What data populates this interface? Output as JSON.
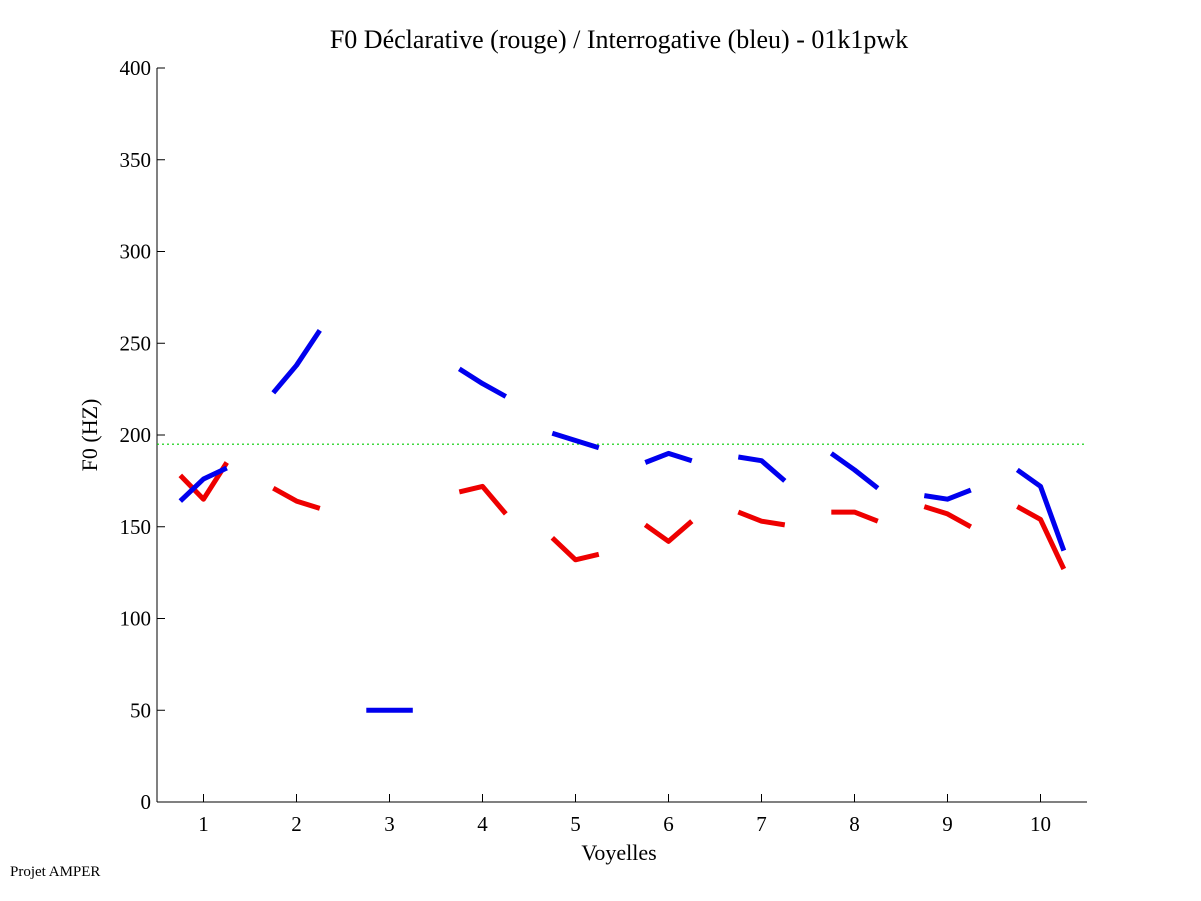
{
  "footer": "Projet AMPER",
  "chart_data": {
    "type": "line",
    "title": "F0 Déclarative (rouge) / Interrogative (bleu) - 01k1pwk",
    "xlabel": "Voyelles",
    "ylabel": "F0 (HZ)",
    "xlim": [
      0.5,
      10.5
    ],
    "ylim": [
      0,
      400
    ],
    "xticks": [
      1,
      2,
      3,
      4,
      5,
      6,
      7,
      8,
      9,
      10
    ],
    "yticks": [
      0,
      50,
      100,
      150,
      200,
      250,
      300,
      350,
      400
    ],
    "grid": false,
    "reference_line": {
      "y": 195,
      "color": "#00cc00",
      "style": "dotted"
    },
    "series": [
      {
        "name": "Déclarative",
        "color": "#ee0000",
        "segments": [
          {
            "x": [
              0.75,
              1.0,
              1.25
            ],
            "y": [
              178,
              165,
              185
            ]
          },
          {
            "x": [
              1.75,
              2.0,
              2.25
            ],
            "y": [
              171,
              164,
              160
            ]
          },
          {
            "x": [
              3.75,
              4.0,
              4.25
            ],
            "y": [
              169,
              172,
              157
            ]
          },
          {
            "x": [
              4.75,
              5.0,
              5.25
            ],
            "y": [
              144,
              132,
              135
            ]
          },
          {
            "x": [
              5.75,
              6.0,
              6.25
            ],
            "y": [
              151,
              142,
              153
            ]
          },
          {
            "x": [
              6.75,
              7.0,
              7.25
            ],
            "y": [
              158,
              153,
              151
            ]
          },
          {
            "x": [
              7.75,
              8.0,
              8.25
            ],
            "y": [
              158,
              158,
              153
            ]
          },
          {
            "x": [
              8.75,
              9.0,
              9.25
            ],
            "y": [
              161,
              157,
              150
            ]
          },
          {
            "x": [
              9.75,
              10.0,
              10.25
            ],
            "y": [
              161,
              154,
              127
            ]
          }
        ]
      },
      {
        "name": "Interrogative",
        "color": "#0000ee",
        "segments": [
          {
            "x": [
              0.75,
              1.0,
              1.25
            ],
            "y": [
              164,
              176,
              182
            ]
          },
          {
            "x": [
              1.75,
              2.0,
              2.25
            ],
            "y": [
              223,
              238,
              257
            ]
          },
          {
            "x": [
              2.75,
              3.0,
              3.25
            ],
            "y": [
              50,
              50,
              50
            ]
          },
          {
            "x": [
              3.75,
              4.0,
              4.25
            ],
            "y": [
              236,
              228,
              221
            ]
          },
          {
            "x": [
              4.75,
              5.0,
              5.25
            ],
            "y": [
              201,
              197,
              193
            ]
          },
          {
            "x": [
              5.75,
              6.0,
              6.25
            ],
            "y": [
              185,
              190,
              186
            ]
          },
          {
            "x": [
              6.75,
              7.0,
              7.25
            ],
            "y": [
              188,
              186,
              175
            ]
          },
          {
            "x": [
              7.75,
              8.0,
              8.25
            ],
            "y": [
              190,
              181,
              171
            ]
          },
          {
            "x": [
              8.75,
              9.0,
              9.25
            ],
            "y": [
              167,
              165,
              170
            ]
          },
          {
            "x": [
              9.75,
              10.0,
              10.25
            ],
            "y": [
              181,
              172,
              137
            ]
          }
        ]
      }
    ]
  }
}
